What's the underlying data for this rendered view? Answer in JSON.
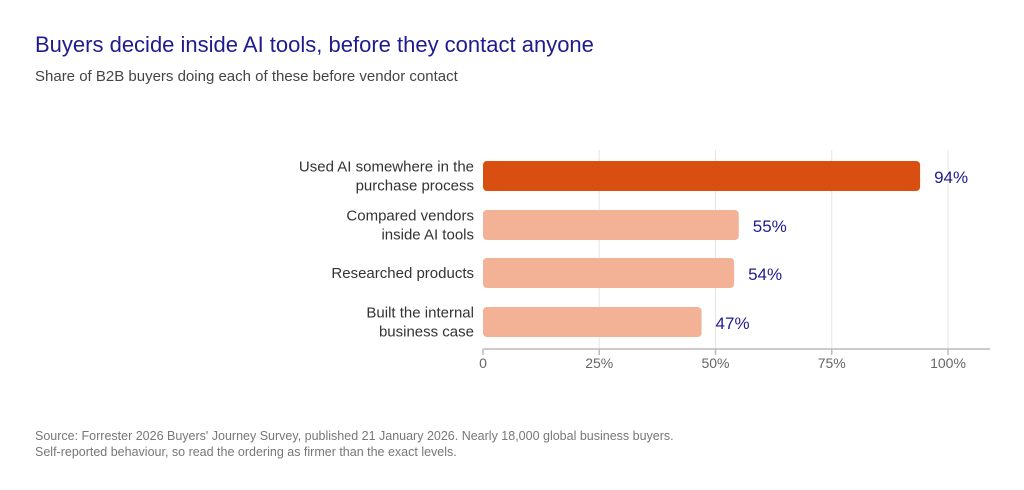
{
  "header": {
    "title": "Buyers decide inside AI tools, before they contact anyone",
    "subtitle": "Share of B2B buyers doing each of these before vendor contact"
  },
  "footer": {
    "source_line1": "Source: Forrester 2026 Buyers' Journey Survey, published 21 January 2026. Nearly 18,000 global business buyers.",
    "source_line2": "Self-reported behaviour, so read the ordering as firmer than the exact levels."
  },
  "chart_data": {
    "type": "bar",
    "orientation": "horizontal",
    "categories": [
      [
        "Used AI somewhere in the",
        "purchase process"
      ],
      [
        "Compared vendors",
        "inside AI tools"
      ],
      [
        "Researched products"
      ],
      [
        "Built the internal",
        "business case"
      ]
    ],
    "values": [
      94,
      55,
      54,
      47
    ],
    "value_labels": [
      "94%",
      "55%",
      "54%",
      "47%"
    ],
    "xlim": [
      0,
      100
    ],
    "xticks": [
      0,
      25,
      50,
      75,
      100
    ],
    "xtick_labels": [
      "0",
      "25%",
      "50%",
      "75%",
      "100%"
    ],
    "grid": true,
    "colors": {
      "highlight": "#d94f12",
      "bar": "#f3b196",
      "value_label": "#1f1b8f",
      "grid": "#e6e6e6",
      "axis": "#bbbbbb",
      "category_label": "#333333",
      "tick_label": "#666666"
    }
  }
}
